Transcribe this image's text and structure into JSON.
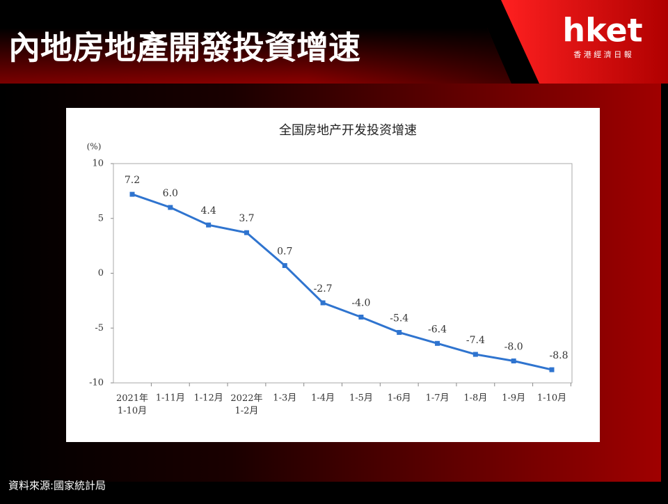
{
  "header": {
    "title": "內地房地產開發投資增速",
    "logo": "hket",
    "logo_subtitle": "香 港 經 濟 日 報"
  },
  "source": "資料來源:國家統計局",
  "chart_data": {
    "type": "line",
    "title": "全国房地产开发投资增速",
    "y_unit": "(%)",
    "categories": [
      "2021年\n1-10月",
      "1-11月",
      "1-12月",
      "2022年\n1-2月",
      "1-3月",
      "1-4月",
      "1-5月",
      "1-6月",
      "1-7月",
      "1-8月",
      "1-9月",
      "1-10月"
    ],
    "values": [
      7.2,
      6.0,
      4.4,
      3.7,
      0.7,
      -2.7,
      -4.0,
      -5.4,
      -6.4,
      -7.4,
      -8.0,
      -8.8
    ],
    "value_labels": [
      "7.2",
      "6.0",
      "4.4",
      "3.7",
      "0.7",
      "-2.7",
      "-4.0",
      "-5.4",
      "-6.4",
      "-7.4",
      "-8.0",
      "-8.8"
    ],
    "color": "#2f74cf",
    "ylim": [
      -10,
      10
    ],
    "yticks": [
      -10,
      -5,
      0,
      5,
      10
    ]
  }
}
